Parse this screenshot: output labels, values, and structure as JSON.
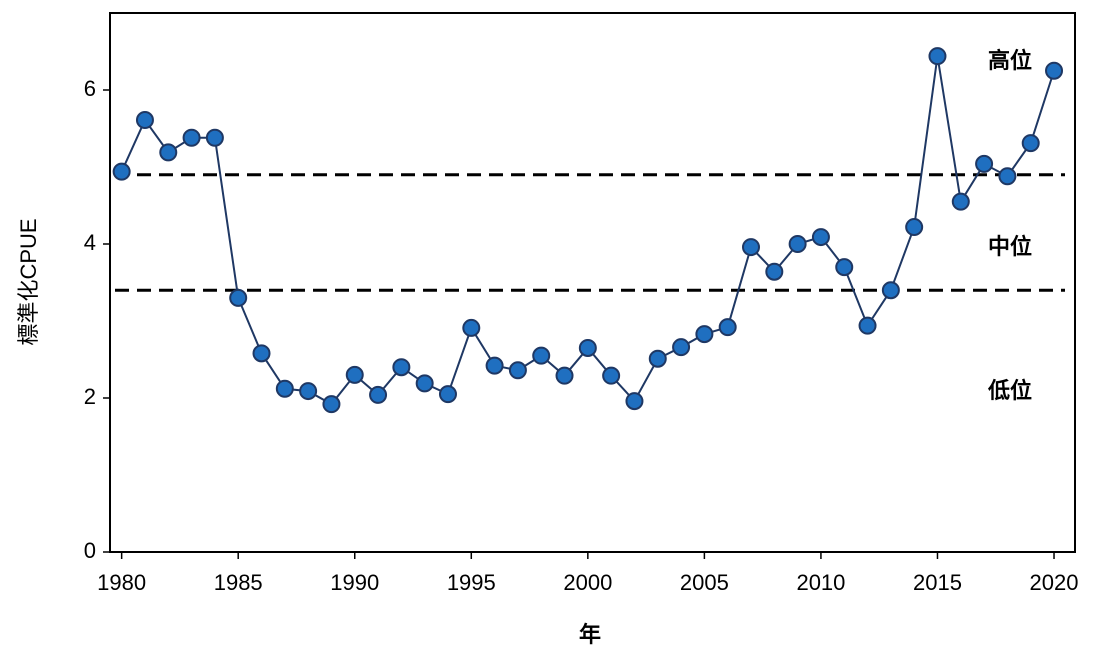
{
  "chart_data": {
    "type": "line",
    "x_label": "年",
    "y_label": "標準化CPUE",
    "x": [
      1980,
      1981,
      1982,
      1983,
      1984,
      1985,
      1986,
      1987,
      1988,
      1989,
      1990,
      1991,
      1992,
      1993,
      1994,
      1995,
      1996,
      1997,
      1998,
      1999,
      2000,
      2001,
      2002,
      2003,
      2004,
      2005,
      2006,
      2007,
      2008,
      2009,
      2010,
      2011,
      2012,
      2013,
      2014,
      2015,
      2016,
      2017,
      2018,
      2019,
      2020
    ],
    "series": [
      {
        "color": "#1f3864",
        "marker_color": "#1f6fc0",
        "values": [
          4.94,
          5.61,
          5.19,
          5.38,
          5.38,
          3.3,
          2.58,
          2.12,
          2.09,
          1.92,
          2.3,
          2.04,
          2.4,
          2.19,
          2.05,
          2.91,
          2.42,
          2.36,
          2.55,
          2.29,
          2.65,
          2.29,
          1.96,
          2.51,
          2.66,
          2.83,
          2.92,
          3.96,
          3.64,
          4.0,
          4.09,
          3.7,
          2.94,
          3.4,
          4.22,
          6.44,
          4.55,
          5.04,
          4.88,
          5.31,
          6.25
        ]
      }
    ],
    "thresholds": [
      4.9,
      3.4
    ],
    "level_labels": [
      "高位",
      "中位",
      "低位"
    ],
    "xlim": [
      1979.5,
      2020.9
    ],
    "ylim": [
      0,
      7
    ],
    "xticks": [
      1980,
      1985,
      1990,
      1995,
      2000,
      2005,
      2010,
      2015,
      2020
    ],
    "yticks": [
      0,
      2,
      4,
      6
    ],
    "grid": false
  }
}
